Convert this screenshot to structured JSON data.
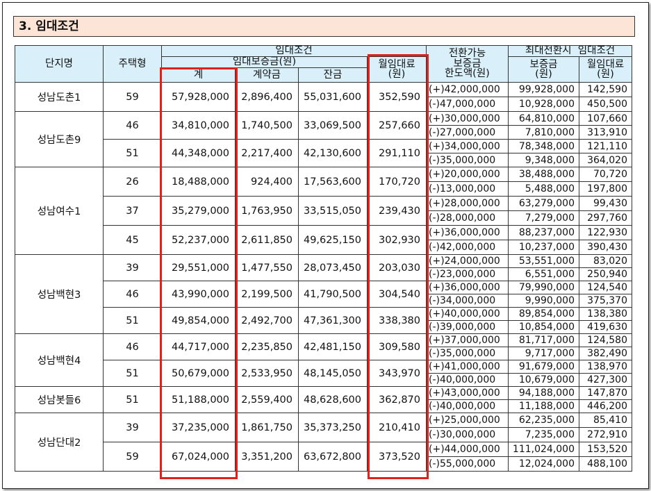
{
  "title": "3. 임대조건",
  "headers": {
    "complex": "단지명",
    "type": "주택형",
    "rental_conditions": "임대조건",
    "deposit": "임대보증금(원)",
    "total": "계",
    "contract": "계약금",
    "balance": "잔금",
    "monthly_rent_a": "월임대료",
    "monthly_rent_b": "(원)",
    "conv_a": "전환가능",
    "conv_b": "보증금",
    "conv_c": "한도액(원)",
    "max_conv": "최대전환시  임대조건",
    "max_deposit_a": "보증금",
    "max_deposit_b": "(원)",
    "max_rent_a": "월임대료",
    "max_rent_b": "(원)"
  },
  "complexes": [
    {
      "name": "성남도촌1",
      "units": [
        {
          "type": "59",
          "total": "57,928,000",
          "contract": "2,896,400",
          "balance": "55,031,600",
          "rent": "352,590",
          "conv": [
            {
              "limit": "(+)42,000,000",
              "deposit": "99,928,000",
              "rent": "142,590"
            },
            {
              "limit": "(-)47,000,000",
              "deposit": "10,928,000",
              "rent": "450,500"
            }
          ]
        }
      ]
    },
    {
      "name": "성남도촌9",
      "units": [
        {
          "type": "46",
          "total": "34,810,000",
          "contract": "1,740,500",
          "balance": "33,069,500",
          "rent": "257,660",
          "conv": [
            {
              "limit": "(+)30,000,000",
              "deposit": "64,810,000",
              "rent": "107,660"
            },
            {
              "limit": "(-)27,000,000",
              "deposit": "7,810,000",
              "rent": "313,910"
            }
          ]
        },
        {
          "type": "51",
          "total": "44,348,000",
          "contract": "2,217,400",
          "balance": "42,130,600",
          "rent": "291,110",
          "conv": [
            {
              "limit": "(+)34,000,000",
              "deposit": "78,348,000",
              "rent": "121,110"
            },
            {
              "limit": "(-)35,000,000",
              "deposit": "9,348,000",
              "rent": "364,020"
            }
          ]
        }
      ]
    },
    {
      "name": "성남여수1",
      "units": [
        {
          "type": "26",
          "total": "18,488,000",
          "contract": "924,400",
          "balance": "17,563,600",
          "rent": "170,720",
          "conv": [
            {
              "limit": "(+)20,000,000",
              "deposit": "38,488,000",
              "rent": "70,720"
            },
            {
              "limit": "(-)13,000,000",
              "deposit": "5,488,000",
              "rent": "197,800"
            }
          ]
        },
        {
          "type": "37",
          "total": "35,279,000",
          "contract": "1,763,950",
          "balance": "33,515,050",
          "rent": "239,430",
          "conv": [
            {
              "limit": "(+)28,000,000",
              "deposit": "63,279,000",
              "rent": "99,430"
            },
            {
              "limit": "(-)28,000,000",
              "deposit": "7,279,000",
              "rent": "297,760"
            }
          ]
        },
        {
          "type": "45",
          "total": "52,237,000",
          "contract": "2,611,850",
          "balance": "49,625,150",
          "rent": "302,930",
          "conv": [
            {
              "limit": "(+)36,000,000",
              "deposit": "88,237,000",
              "rent": "122,930"
            },
            {
              "limit": "(-)42,000,000",
              "deposit": "10,237,000",
              "rent": "390,430"
            }
          ]
        }
      ]
    },
    {
      "name": "성남백현3",
      "units": [
        {
          "type": "39",
          "total": "29,551,000",
          "contract": "1,477,550",
          "balance": "28,073,450",
          "rent": "203,030",
          "conv": [
            {
              "limit": "(+)24,000,000",
              "deposit": "53,551,000",
              "rent": "83,020"
            },
            {
              "limit": "(-)23,000,000",
              "deposit": "6,551,000",
              "rent": "250,940"
            }
          ]
        },
        {
          "type": "46",
          "total": "43,990,000",
          "contract": "2,199,500",
          "balance": "41,790,500",
          "rent": "304,540",
          "conv": [
            {
              "limit": "(+)36,000,000",
              "deposit": "79,990,000",
              "rent": "124,540"
            },
            {
              "limit": "(-)34,000,000",
              "deposit": "9,990,000",
              "rent": "375,370"
            }
          ]
        },
        {
          "type": "51",
          "total": "49,854,000",
          "contract": "2,492,700",
          "balance": "47,361,300",
          "rent": "338,380",
          "conv": [
            {
              "limit": "(+)40,000,000",
              "deposit": "89,854,000",
              "rent": "138,380"
            },
            {
              "limit": "(-)39,000,000",
              "deposit": "10,854,000",
              "rent": "419,630"
            }
          ]
        }
      ]
    },
    {
      "name": "성남백현4",
      "units": [
        {
          "type": "46",
          "total": "44,717,000",
          "contract": "2,235,850",
          "balance": "42,481,150",
          "rent": "309,580",
          "conv": [
            {
              "limit": "(+)37,000,000",
              "deposit": "81,717,000",
              "rent": "124,580"
            },
            {
              "limit": "(-)35,000,000",
              "deposit": "9,717,000",
              "rent": "382,490"
            }
          ]
        },
        {
          "type": "51",
          "total": "50,679,000",
          "contract": "2,533,950",
          "balance": "48,145,050",
          "rent": "343,970",
          "conv": [
            {
              "limit": "(+)41,000,000",
              "deposit": "91,679,000",
              "rent": "138,970"
            },
            {
              "limit": "(-)40,000,000",
              "deposit": "10,679,000",
              "rent": "427,300"
            }
          ]
        }
      ]
    },
    {
      "name": "성남봇들6",
      "units": [
        {
          "type": "51",
          "total": "51,188,000",
          "contract": "2,559,400",
          "balance": "48,628,600",
          "rent": "362,870",
          "conv": [
            {
              "limit": "(+)43,000,000",
              "deposit": "94,188,000",
              "rent": "147,870"
            },
            {
              "limit": "(-)40,000,000",
              "deposit": "11,188,000",
              "rent": "446,200"
            }
          ]
        }
      ]
    },
    {
      "name": "성남단대2",
      "units": [
        {
          "type": "39",
          "total": "37,235,000",
          "contract": "1,861,750",
          "balance": "35,373,250",
          "rent": "210,410",
          "conv": [
            {
              "limit": "(+)25,000,000",
              "deposit": "62,235,000",
              "rent": "85,410"
            },
            {
              "limit": "(-)30,000,000",
              "deposit": "7,235,000",
              "rent": "272,910"
            }
          ]
        },
        {
          "type": "59",
          "total": "67,024,000",
          "contract": "3,351,200",
          "balance": "63,672,800",
          "rent": "373,520",
          "conv": [
            {
              "limit": "(+)44,000,000",
              "deposit": "111,024,000",
              "rent": "153,520"
            },
            {
              "limit": "(-)55,000,000",
              "deposit": "12,024,000",
              "rent": "488,100"
            }
          ]
        }
      ]
    }
  ],
  "colors": {
    "title_bg": "#fce4d6",
    "header_bg": "#d9f0fa",
    "highlight": "#e0201b"
  }
}
